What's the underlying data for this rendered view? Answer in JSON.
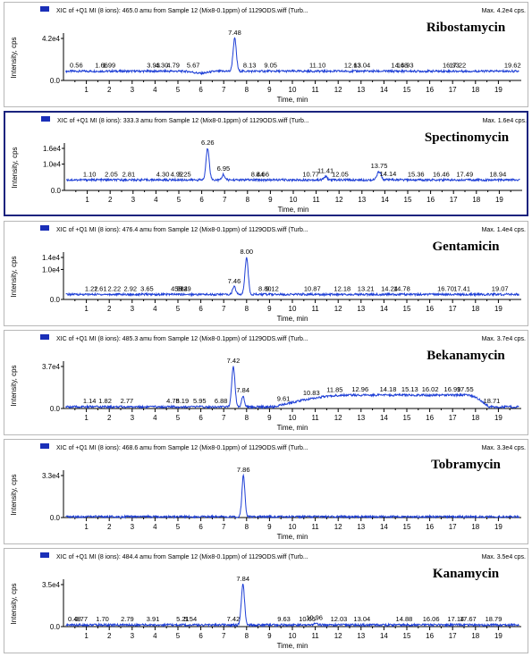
{
  "axis_labels": {
    "x": "Time, min",
    "y": "Intensity, cps"
  },
  "colors": {
    "trace": "#1e3fd6",
    "legend_swatch": "#1a2fb8",
    "selected_border": "#1a237e"
  },
  "chart_data": [
    {
      "type": "line",
      "header": "XIC of +Q1 MI (8 ions): 465.0 amu from Sample 12 (Mix8-0.1ppm) of 1129ODS.wiff (Turb...",
      "max_label": "Max. 4.2e4 cps.",
      "compound": "Ribostamycin",
      "xlabel": "Time, min",
      "ylabel": "Intensity, cps",
      "xlim": [
        0,
        20
      ],
      "x_ticks": [
        1,
        2,
        3,
        4,
        5,
        6,
        7,
        8,
        9,
        10,
        11,
        12,
        13,
        14,
        15,
        16,
        17,
        18,
        19
      ],
      "ymax": 42000,
      "y_ticks": [
        {
          "label": "4.2e4",
          "value": 42000
        },
        {
          "label": "0.0",
          "value": 0
        }
      ],
      "baseline": 0.22,
      "dips": [
        {
          "t": 6.0,
          "depth": 0.05,
          "width": 0.4
        }
      ],
      "peaks": [
        {
          "t": 7.48,
          "height": 1.0,
          "width": 0.1
        }
      ],
      "peak_labels": [
        {
          "label": "0.56",
          "t": 0.56
        },
        {
          "label": "1.66",
          "t": 1.66
        },
        {
          "label": "1.99",
          "t": 1.99
        },
        {
          "label": "3.93",
          "t": 3.93
        },
        {
          "label": "4.30",
          "t": 4.3
        },
        {
          "label": "4.79",
          "t": 4.79
        },
        {
          "label": "5.67",
          "t": 5.67
        },
        {
          "label": "7.48",
          "t": 7.48
        },
        {
          "label": "8.13",
          "t": 8.13
        },
        {
          "label": "9.05",
          "t": 9.05
        },
        {
          "label": "11.10",
          "t": 11.1
        },
        {
          "label": "12.63",
          "t": 12.63
        },
        {
          "label": "13.04",
          "t": 13.04
        },
        {
          "label": "14.68",
          "t": 14.68
        },
        {
          "label": "14.93",
          "t": 14.93
        },
        {
          "label": "16.93",
          "t": 16.93
        },
        {
          "label": "17.22",
          "t": 17.22
        },
        {
          "label": "19.62",
          "t": 19.62
        }
      ]
    },
    {
      "type": "line",
      "header": "XIC of +Q1 MI (8 ions): 333.3 amu from Sample 12 (Mix8-0.1ppm) of 1129ODS.wiff (Turb...",
      "max_label": "Max. 1.6e4 cps.",
      "compound": "Spectinomycin",
      "xlabel": "Time, min",
      "ylabel": "Intensity, cps",
      "xlim": [
        0,
        20
      ],
      "x_ticks": [
        1,
        2,
        3,
        4,
        5,
        6,
        7,
        8,
        9,
        10,
        11,
        12,
        13,
        14,
        15,
        16,
        17,
        18,
        19
      ],
      "ymax": 16000,
      "y_ticks": [
        {
          "label": "1.6e4",
          "value": 16000
        },
        {
          "label": "1.0e4",
          "value": 10000
        },
        {
          "label": "0.0",
          "value": 0
        }
      ],
      "baseline": 0.25,
      "dips": [],
      "peaks": [
        {
          "t": 6.26,
          "height": 1.0,
          "width": 0.1
        },
        {
          "t": 6.95,
          "height": 0.38,
          "width": 0.08
        },
        {
          "t": 13.75,
          "height": 0.45,
          "width": 0.12
        },
        {
          "t": 11.41,
          "height": 0.33,
          "width": 0.1
        }
      ],
      "peak_labels": [
        {
          "label": "1.10",
          "t": 1.1
        },
        {
          "label": "2.05",
          "t": 2.05
        },
        {
          "label": "2.81",
          "t": 2.81
        },
        {
          "label": "4.30",
          "t": 4.3
        },
        {
          "label": "4.92",
          "t": 4.92
        },
        {
          "label": "5.25",
          "t": 5.25
        },
        {
          "label": "6.26",
          "t": 6.26
        },
        {
          "label": "6.95",
          "t": 6.95
        },
        {
          "label": "8.44",
          "t": 8.44
        },
        {
          "label": "8.66",
          "t": 8.66
        },
        {
          "label": "10.77",
          "t": 10.77
        },
        {
          "label": "11.41",
          "t": 11.41
        },
        {
          "label": "12.05",
          "t": 12.05
        },
        {
          "label": "13.75",
          "t": 13.75
        },
        {
          "label": "14.14",
          "t": 14.14
        },
        {
          "label": "15.36",
          "t": 15.36
        },
        {
          "label": "16.46",
          "t": 16.46
        },
        {
          "label": "17.49",
          "t": 17.49
        },
        {
          "label": "18.94",
          "t": 18.94
        }
      ]
    },
    {
      "type": "line",
      "header": "XIC of +Q1 MI (8 ions): 476.4 amu from Sample 12 (Mix8-0.1ppm) of 1129ODS.wiff (Turb...",
      "max_label": "Max. 1.4e4 cps.",
      "compound": "Gentamicin",
      "xlabel": "Time, min",
      "ylabel": "Intensity, cps",
      "xlim": [
        0,
        20
      ],
      "x_ticks": [
        1,
        2,
        3,
        4,
        5,
        6,
        7,
        8,
        9,
        10,
        11,
        12,
        13,
        14,
        15,
        16,
        17,
        18,
        19
      ],
      "ymax": 14000,
      "y_ticks": [
        {
          "label": "1.4e4",
          "value": 14000
        },
        {
          "label": "1.0e4",
          "value": 10000
        },
        {
          "label": "0.0",
          "value": 0
        }
      ],
      "baseline": 0.12,
      "dips": [],
      "peaks": [
        {
          "t": 7.46,
          "height": 0.3,
          "width": 0.1
        },
        {
          "t": 8.0,
          "height": 1.0,
          "width": 0.1
        }
      ],
      "peak_labels": [
        {
          "label": "1.22",
          "t": 1.22
        },
        {
          "label": "1.61",
          "t": 1.61
        },
        {
          "label": "2.22",
          "t": 2.22
        },
        {
          "label": "2.92",
          "t": 2.92
        },
        {
          "label": "3.65",
          "t": 3.65
        },
        {
          "label": "4.98",
          "t": 4.98
        },
        {
          "label": "5.29",
          "t": 5.29
        },
        {
          "label": "5.14",
          "t": 5.14
        },
        {
          "label": "7.46",
          "t": 7.46
        },
        {
          "label": "8.00",
          "t": 8.0
        },
        {
          "label": "8.80",
          "t": 8.8
        },
        {
          "label": "9.12",
          "t": 9.12
        },
        {
          "label": "10.87",
          "t": 10.87
        },
        {
          "label": "12.18",
          "t": 12.18
        },
        {
          "label": "13.21",
          "t": 13.21
        },
        {
          "label": "14.24",
          "t": 14.24
        },
        {
          "label": "14.78",
          "t": 14.78
        },
        {
          "label": "16.70",
          "t": 16.7
        },
        {
          "label": "17.41",
          "t": 17.41
        },
        {
          "label": "19.07",
          "t": 19.07
        }
      ]
    },
    {
      "type": "line",
      "header": "XIC of +Q1 MI (8 ions): 485.3 amu from Sample 12 (Mix8-0.1ppm) of 1129ODS.wiff (Turb...",
      "max_label": "Max. 3.7e4 cps.",
      "compound": "Bekanamycin",
      "xlabel": "Time, min",
      "ylabel": "Intensity, cps",
      "xlim": [
        0,
        20
      ],
      "x_ticks": [
        1,
        2,
        3,
        4,
        5,
        6,
        7,
        8,
        9,
        10,
        11,
        12,
        13,
        14,
        15,
        16,
        17,
        18,
        19
      ],
      "ymax": 37000,
      "y_ticks": [
        {
          "label": "3.7e4",
          "value": 37000
        },
        {
          "label": "0.0",
          "value": 0
        }
      ],
      "baseline": 0.04,
      "dips": [],
      "peaks": [
        {
          "t": 7.42,
          "height": 1.0,
          "width": 0.1
        },
        {
          "t": 7.84,
          "height": 0.3,
          "width": 0.08
        }
      ],
      "hump": {
        "start": 9.2,
        "plateau_start": 12.5,
        "plateau_end": 17.6,
        "end": 18.6,
        "height": 0.28
      },
      "peak_labels": [
        {
          "label": "1.14",
          "t": 1.14
        },
        {
          "label": "1.82",
          "t": 1.82
        },
        {
          "label": "2.77",
          "t": 2.77
        },
        {
          "label": "4.78",
          "t": 4.78
        },
        {
          "label": "5.19",
          "t": 5.19
        },
        {
          "label": "5.95",
          "t": 5.95
        },
        {
          "label": "6.88",
          "t": 6.88
        },
        {
          "label": "7.42",
          "t": 7.42
        },
        {
          "label": "7.84",
          "t": 7.84
        },
        {
          "label": "9.61",
          "t": 9.61
        },
        {
          "label": "10.83",
          "t": 10.83
        },
        {
          "label": "11.85",
          "t": 11.85
        },
        {
          "label": "12.96",
          "t": 12.96
        },
        {
          "label": "14.18",
          "t": 14.18
        },
        {
          "label": "15.13",
          "t": 15.13
        },
        {
          "label": "16.02",
          "t": 16.02
        },
        {
          "label": "16.99",
          "t": 16.99
        },
        {
          "label": "17.55",
          "t": 17.55
        },
        {
          "label": "18.71",
          "t": 18.71
        }
      ]
    },
    {
      "type": "line",
      "header": "XIC of +Q1 MI (8 ions): 468.6 amu from Sample 12 (Mix8-0.1ppm) of 1129ODS.wiff (Turb...",
      "max_label": "Max. 3.3e4 cps.",
      "compound": "Tobramycin",
      "xlabel": "Time, min",
      "ylabel": "Intensity, cps",
      "xlim": [
        0,
        20
      ],
      "x_ticks": [
        1,
        2,
        3,
        4,
        5,
        6,
        7,
        8,
        9,
        10,
        11,
        12,
        13,
        14,
        15,
        16,
        17,
        18,
        19
      ],
      "ymax": 33000,
      "y_ticks": [
        {
          "label": "3.3e4",
          "value": 33000
        },
        {
          "label": "0.0",
          "value": 0
        }
      ],
      "baseline": 0.02,
      "dips": [],
      "peaks": [
        {
          "t": 7.86,
          "height": 1.0,
          "width": 0.09
        }
      ],
      "peak_labels": [
        {
          "label": "7.86",
          "t": 7.86
        }
      ]
    },
    {
      "type": "line",
      "header": "XIC of +Q1 MI (8 ions): 484.4 amu from Sample 12 (Mix8-0.1ppm) of 1129ODS.wiff (Turb...",
      "max_label": "Max. 3.5e4 cps.",
      "compound": "Kanamycin",
      "xlabel": "Time, min",
      "ylabel": "Intensity, cps",
      "xlim": [
        0,
        20
      ],
      "x_ticks": [
        1,
        2,
        3,
        4,
        5,
        6,
        7,
        8,
        9,
        10,
        11,
        12,
        13,
        14,
        15,
        16,
        17,
        18,
        19
      ],
      "ymax": 35000,
      "y_ticks": [
        {
          "label": "3.5e4",
          "value": 35000
        },
        {
          "label": "0.0",
          "value": 0
        }
      ],
      "baseline": 0.04,
      "dips": [],
      "peaks": [
        {
          "t": 7.84,
          "height": 1.0,
          "width": 0.1
        },
        {
          "t": 11.0,
          "height": 0.08,
          "width": 0.1
        }
      ],
      "peak_labels": [
        {
          "label": "0.48",
          "t": 0.48
        },
        {
          "label": "0.77",
          "t": 0.77
        },
        {
          "label": "1.70",
          "t": 1.7
        },
        {
          "label": "2.79",
          "t": 2.79
        },
        {
          "label": "3.91",
          "t": 3.91
        },
        {
          "label": "5.21",
          "t": 5.21
        },
        {
          "label": "5.54",
          "t": 5.54
        },
        {
          "label": "7.42",
          "t": 7.42
        },
        {
          "label": "7.84",
          "t": 7.84
        },
        {
          "label": "9.63",
          "t": 9.63
        },
        {
          "label": "10.65",
          "t": 10.65
        },
        {
          "label": "10.96",
          "t": 10.96
        },
        {
          "label": "12.03",
          "t": 12.03
        },
        {
          "label": "13.04",
          "t": 13.04
        },
        {
          "label": "14.88",
          "t": 14.88
        },
        {
          "label": "16.06",
          "t": 16.06
        },
        {
          "label": "17.14",
          "t": 17.14
        },
        {
          "label": "17.67",
          "t": 17.67
        },
        {
          "label": "18.79",
          "t": 18.79
        }
      ]
    }
  ]
}
